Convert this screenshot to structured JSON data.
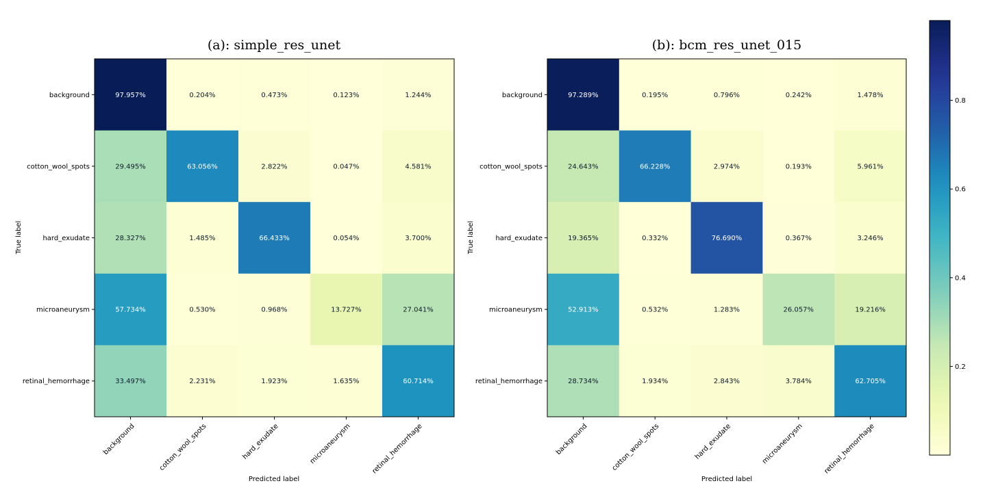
{
  "chart_data": [
    {
      "type": "heatmap",
      "title": "(a): simple_res_unet",
      "xlabel": "Predicted label",
      "ylabel": "True label",
      "x_categories": [
        "background",
        "cotton_wool_spots",
        "hard_exudate",
        "microaneurysm",
        "retinal_hemorrhage"
      ],
      "y_categories": [
        "background",
        "cotton_wool_spots",
        "hard_exudate",
        "microaneurysm",
        "retinal_hemorrhage"
      ],
      "values": [
        [
          0.97957,
          0.00204,
          0.00473,
          0.00123,
          0.01244
        ],
        [
          0.29495,
          0.63056,
          0.02822,
          0.00047,
          0.04581
        ],
        [
          0.28327,
          0.01485,
          0.66433,
          0.00054,
          0.037
        ],
        [
          0.57734,
          0.0053,
          0.00968,
          0.13727,
          0.27041
        ],
        [
          0.33497,
          0.02231,
          0.01923,
          0.01635,
          0.60714
        ]
      ],
      "labels": [
        [
          "97.957%",
          "0.204%",
          "0.473%",
          "0.123%",
          "1.244%"
        ],
        [
          "29.495%",
          "63.056%",
          "2.822%",
          "0.047%",
          "4.581%"
        ],
        [
          "28.327%",
          "1.485%",
          "66.433%",
          "0.054%",
          "3.700%"
        ],
        [
          "57.734%",
          "0.530%",
          "0.968%",
          "13.727%",
          "27.041%"
        ],
        [
          "33.497%",
          "2.231%",
          "1.923%",
          "1.635%",
          "60.714%"
        ]
      ]
    },
    {
      "type": "heatmap",
      "title": "(b): bcm_res_unet_015",
      "xlabel": "Predicted label",
      "ylabel": "True label",
      "x_categories": [
        "background",
        "cotton_wool_spots",
        "hard_exudate",
        "microaneurysm",
        "retinal_hemorrhage"
      ],
      "y_categories": [
        "background",
        "cotton_wool_spots",
        "hard_exudate",
        "microaneurysm",
        "retinal_hemorrhage"
      ],
      "values": [
        [
          0.97289,
          0.00195,
          0.00796,
          0.00242,
          0.01478
        ],
        [
          0.24643,
          0.66228,
          0.02974,
          0.00193,
          0.05961
        ],
        [
          0.19365,
          0.00332,
          0.7669,
          0.00367,
          0.03246
        ],
        [
          0.52913,
          0.00532,
          0.01283,
          0.26057,
          0.19216
        ],
        [
          0.28734,
          0.01934,
          0.02843,
          0.03784,
          0.62705
        ]
      ],
      "labels": [
        [
          "97.289%",
          "0.195%",
          "0.796%",
          "0.242%",
          "1.478%"
        ],
        [
          "24.643%",
          "66.228%",
          "2.974%",
          "0.193%",
          "5.961%"
        ],
        [
          "19.365%",
          "0.332%",
          "76.690%",
          "0.367%",
          "3.246%"
        ],
        [
          "52.913%",
          "0.532%",
          "1.283%",
          "26.057%",
          "19.216%"
        ],
        [
          "28.734%",
          "1.934%",
          "2.843%",
          "3.784%",
          "62.705%"
        ]
      ]
    }
  ],
  "colorbar": {
    "colormap": "YlGnBu",
    "range": [
      0.0,
      0.98
    ],
    "ticks": [
      0.2,
      0.4,
      0.6,
      0.8
    ],
    "tick_labels": [
      "0.2",
      "0.4",
      "0.6",
      "0.8"
    ]
  }
}
